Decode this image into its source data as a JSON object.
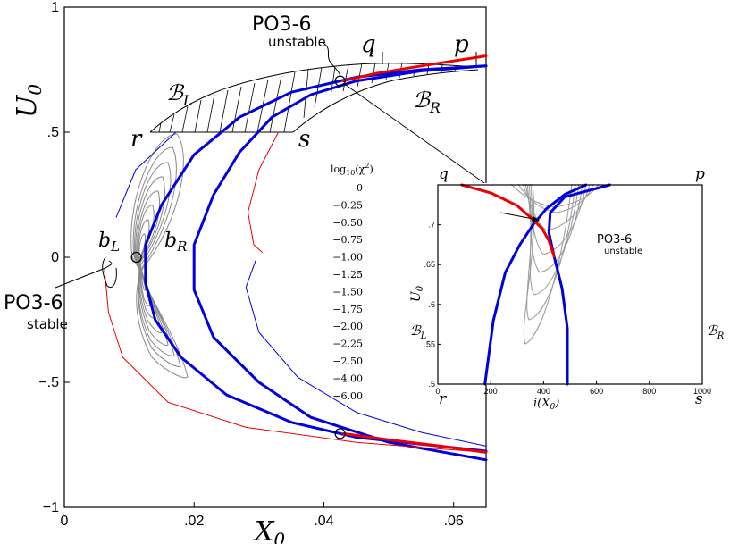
{
  "chart_data": {
    "type": "line",
    "main": {
      "xlabel": "X",
      "xlabel_sub": "0",
      "ylabel": "U",
      "ylabel_sub": "0",
      "xlim": [
        0,
        0.065
      ],
      "ylim": [
        -1,
        1
      ],
      "x_ticks": [
        0,
        0.02,
        0.04,
        0.06
      ],
      "x_tick_labels": [
        "0",
        ".02",
        ".04",
        ".06"
      ],
      "y_ticks": [
        -1,
        -0.5,
        0,
        0.5,
        1
      ],
      "y_tick_labels": [
        "−1",
        "−.5",
        "0",
        ".5",
        "1"
      ],
      "series": [
        {
          "color": "#0000dd",
          "width": 3,
          "points": [
            [
              0.065,
              0.765
            ],
            [
              0.055,
              0.75
            ],
            [
              0.045,
              0.72
            ],
            [
              0.035,
              0.66
            ],
            [
              0.027,
              0.56
            ],
            [
              0.02,
              0.41
            ],
            [
              0.015,
              0.21
            ],
            [
              0.0125,
              0.05
            ],
            [
              0.0125,
              -0.1
            ],
            [
              0.014,
              -0.25
            ],
            [
              0.018,
              -0.4
            ],
            [
              0.025,
              -0.55
            ],
            [
              0.035,
              -0.66
            ],
            [
              0.045,
              -0.72
            ],
            [
              0.065,
              -0.775
            ]
          ]
        },
        {
          "color": "#0000dd",
          "width": 3,
          "points": [
            [
              0.065,
              0.765
            ],
            [
              0.055,
              0.745
            ],
            [
              0.045,
              0.705
            ],
            [
              0.038,
              0.65
            ],
            [
              0.032,
              0.56
            ],
            [
              0.027,
              0.42
            ],
            [
              0.023,
              0.25
            ],
            [
              0.02,
              0.05
            ],
            [
              0.02,
              -0.13
            ],
            [
              0.023,
              -0.32
            ],
            [
              0.03,
              -0.5
            ],
            [
              0.038,
              -0.64
            ],
            [
              0.05,
              -0.74
            ],
            [
              0.065,
              -0.81
            ]
          ]
        },
        {
          "color": "#ee0000",
          "width": 3,
          "points": [
            [
              0.043,
              0.705
            ],
            [
              0.048,
              0.735
            ],
            [
              0.055,
              0.765
            ],
            [
              0.065,
              0.805
            ]
          ]
        },
        {
          "color": "#ee0000",
          "width": 3,
          "points": [
            [
              0.043,
              -0.705
            ],
            [
              0.05,
              -0.73
            ],
            [
              0.058,
              -0.755
            ],
            [
              0.065,
              -0.78
            ]
          ]
        },
        {
          "color": "#0000dd",
          "width": 1,
          "points": [
            [
              0.0172,
              0.5
            ],
            [
              0.011,
              0.35
            ],
            [
              0.008,
              0.16
            ]
          ]
        },
        {
          "color": "#0000dd",
          "width": 1,
          "points": [
            [
              0.0295,
              -0.012
            ],
            [
              0.028,
              -0.12
            ],
            [
              0.03,
              -0.3
            ],
            [
              0.036,
              -0.48
            ],
            [
              0.045,
              -0.62
            ],
            [
              0.055,
              -0.7
            ],
            [
              0.065,
              -0.755
            ]
          ]
        },
        {
          "color": "#ee0000",
          "width": 1,
          "points": [
            [
              0.033,
              0.5
            ],
            [
              0.03,
              0.35
            ],
            [
              0.0283,
              0.18
            ],
            [
              0.0292,
              0.05
            ],
            [
              0.0305,
              0.02
            ]
          ]
        },
        {
          "color": "#ee0000",
          "width": 1,
          "points": [
            [
              0.0062,
              -0.05
            ],
            [
              0.0068,
              -0.22
            ],
            [
              0.009,
              -0.4
            ],
            [
              0.016,
              -0.58
            ],
            [
              0.028,
              -0.68
            ],
            [
              0.045,
              -0.74
            ],
            [
              0.065,
              -0.78
            ]
          ]
        }
      ],
      "circles": [
        [
          0.0425,
          0.705
        ],
        [
          0.0425,
          -0.705
        ],
        [
          0.0111,
          0.0
        ]
      ],
      "labels": {
        "B_L": "ℬ",
        "B_L_sub": "L",
        "B_R": "ℬ",
        "B_R_sub": "R",
        "b_L": "b",
        "b_L_sub": "L",
        "b_R": "b",
        "b_R_sub": "R",
        "r": "r",
        "s": "s",
        "q": "q",
        "p": "p"
      },
      "annotations": {
        "po_unstable": "PO3-6",
        "po_unstable_sub": "unstable",
        "po_stable": "PO3-6",
        "po_stable_sub": "stable"
      }
    },
    "legend": {
      "title_prefix": "log",
      "title_sub": "10",
      "title_arg": "(χ",
      "title_sup": "2",
      "title_close": ")",
      "levels": [
        "0",
        "−0.25",
        "−0.50",
        "−0.75",
        "−1.00",
        "−1.25",
        "−1.50",
        "−1.75",
        "−2.00",
        "−2.25",
        "−2.50",
        "−4.00",
        "−6.00"
      ]
    },
    "inset": {
      "xlabel": "i(X",
      "xlabel_sub": "0",
      "xlabel_close": ")",
      "ylabel": "U",
      "ylabel_sub": "0",
      "xlim": [
        0,
        1000
      ],
      "ylim": [
        0.5,
        0.75
      ],
      "x_ticks": [
        0,
        200,
        400,
        600,
        800,
        1000
      ],
      "x_tick_labels": [
        "0",
        "200",
        "400",
        "600",
        "800",
        "1000"
      ],
      "y_ticks": [
        0.5,
        0.55,
        0.6,
        0.65,
        0.7
      ],
      "y_tick_labels": [
        ".5",
        ".55",
        ".6",
        ".65",
        ".7"
      ],
      "corner_q": "q",
      "corner_p": "p",
      "corner_r": "r",
      "corner_s": "s",
      "side_L": "ℬ",
      "side_L_sub": "L",
      "side_R": "ℬ",
      "side_R_sub": "R",
      "po_label": "PO3-6",
      "po_label_sub": "unstable",
      "series": [
        {
          "color": "#0000dd",
          "width": 3,
          "points": [
            [
              178,
              0.5
            ],
            [
              210,
              0.58
            ],
            [
              255,
              0.64
            ],
            [
              310,
              0.675
            ],
            [
              360,
              0.7
            ],
            [
              410,
              0.72
            ],
            [
              480,
              0.738
            ],
            [
              560,
              0.75
            ]
          ]
        },
        {
          "color": "#0000dd",
          "width": 3,
          "points": [
            [
              490,
              0.5
            ],
            [
              490,
              0.57
            ],
            [
              470,
              0.62
            ],
            [
              440,
              0.66
            ],
            [
              420,
              0.69
            ],
            [
              425,
              0.715
            ],
            [
              480,
              0.735
            ],
            [
              650,
              0.75
            ]
          ]
        },
        {
          "color": "#ee0000",
          "width": 3,
          "points": [
            [
              90,
              0.75
            ],
            [
              200,
              0.74
            ],
            [
              300,
              0.724
            ],
            [
              355,
              0.708
            ],
            [
              395,
              0.695
            ],
            [
              420,
              0.68
            ],
            [
              440,
              0.66
            ]
          ]
        }
      ]
    }
  }
}
